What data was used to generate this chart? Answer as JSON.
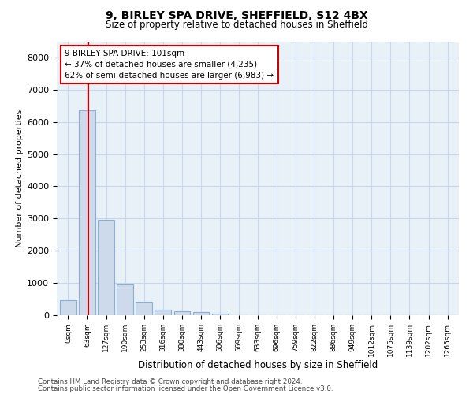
{
  "title_line1": "9, BIRLEY SPA DRIVE, SHEFFIELD, S12 4BX",
  "title_line2": "Size of property relative to detached houses in Sheffield",
  "xlabel": "Distribution of detached houses by size in Sheffield",
  "ylabel": "Number of detached properties",
  "bar_color": "#cddaeb",
  "bar_edge_color": "#8aafd4",
  "grid_color": "#c8d8e8",
  "background_color": "#e8f0f8",
  "annotation_box_color": "#cc0000",
  "red_line_color": "#cc0000",
  "categories": [
    "0sqm",
    "63sqm",
    "127sqm",
    "190sqm",
    "253sqm",
    "316sqm",
    "380sqm",
    "443sqm",
    "506sqm",
    "569sqm",
    "633sqm",
    "696sqm",
    "759sqm",
    "822sqm",
    "886sqm",
    "949sqm",
    "1012sqm",
    "1075sqm",
    "1139sqm",
    "1202sqm",
    "1265sqm"
  ],
  "bar_values": [
    470,
    6350,
    2950,
    950,
    410,
    175,
    130,
    90,
    60,
    0,
    0,
    0,
    0,
    0,
    0,
    0,
    0,
    0,
    0,
    0,
    0
  ],
  "ylim": [
    0,
    8500
  ],
  "yticks": [
    0,
    1000,
    2000,
    3000,
    4000,
    5000,
    6000,
    7000,
    8000
  ],
  "annotation_text_line1": "9 BIRLEY SPA DRIVE: 101sqm",
  "annotation_text_line2": "← 37% of detached houses are smaller (4,235)",
  "annotation_text_line3": "62% of semi-detached houses are larger (6,983) →",
  "footnote1": "Contains HM Land Registry data © Crown copyright and database right 2024.",
  "footnote2": "Contains public sector information licensed under the Open Government Licence v3.0.",
  "title1_fontsize": 10,
  "title2_fontsize": 8.5
}
